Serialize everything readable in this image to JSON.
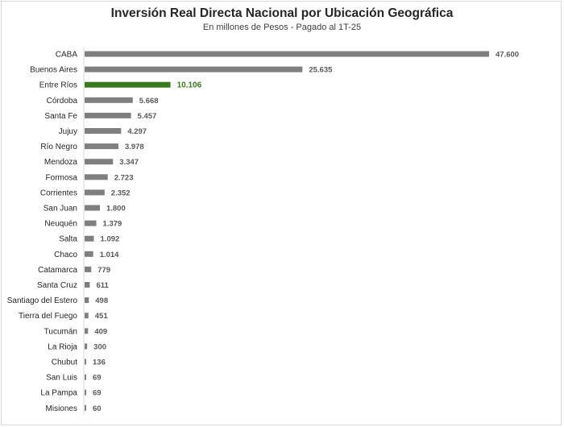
{
  "chart_data": {
    "type": "bar",
    "orientation": "horizontal",
    "title": "Inversión Real Directa Nacional por Ubicación Geográfica",
    "subtitle": "En millones de Pesos - Pagado al 1T-25",
    "categories": [
      "CABA",
      "Buenos Aires",
      "Entre Ríos",
      "Córdoba",
      "Santa Fe",
      "Jujuy",
      "Río Negro",
      "Mendoza",
      "Formosa",
      "Corrientes",
      "San Juan",
      "Neuquén",
      "Salta",
      "Chaco",
      "Catamarca",
      "Santa Cruz",
      "Santiago del Estero",
      "Tierra del Fuego",
      "Tucumán",
      "La Rioja",
      "Chubut",
      "San Luis",
      "La Pampa",
      "Misiones"
    ],
    "values": [
      47600,
      25635,
      10106,
      5668,
      5457,
      4297,
      3978,
      3347,
      2723,
      2352,
      1800,
      1379,
      1092,
      1014,
      779,
      611,
      498,
      451,
      409,
      300,
      136,
      69,
      69,
      60
    ],
    "value_labels": [
      "47.600",
      "25.635",
      "10.106",
      "5.668",
      "5.457",
      "4.297",
      "3.978",
      "3.347",
      "2.723",
      "2.352",
      "1.800",
      "1.379",
      "1.092",
      "1.014",
      "779",
      "611",
      "498",
      "451",
      "409",
      "300",
      "136",
      "69",
      "69",
      "60"
    ],
    "highlight": "Entre Ríos",
    "bar_color": "#7f7f7f",
    "highlight_color": "#3a7a1e",
    "xlim": [
      0,
      47600
    ],
    "grid": false,
    "legend": "none"
  }
}
